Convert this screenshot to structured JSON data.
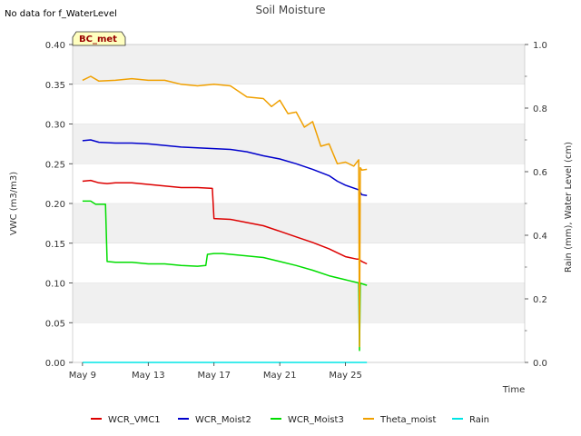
{
  "chart_data": {
    "type": "line",
    "title": "Soil Moisture",
    "no_data_message": "No data for f_WaterLevel",
    "badge": "BC_met",
    "xlabel": "Time",
    "ylabel_left": "VWC (m3/m3)",
    "ylabel_right": "Rain (mm), Water Level (cm)",
    "x_unit": "days since May 9",
    "xlim": [
      -0.6,
      26.9
    ],
    "ylim_left": [
      0,
      0.4
    ],
    "ylim_right": [
      0,
      1.0
    ],
    "x_ticks": [
      {
        "value": 0,
        "label": "May 9"
      },
      {
        "value": 4,
        "label": "May 13"
      },
      {
        "value": 8,
        "label": "May 17"
      },
      {
        "value": 12,
        "label": "May 21"
      },
      {
        "value": 16,
        "label": "May 25"
      }
    ],
    "y_ticks_left": [
      {
        "value": 0.0,
        "label": "0.00"
      },
      {
        "value": 0.05,
        "label": "0.05"
      },
      {
        "value": 0.1,
        "label": "0.10"
      },
      {
        "value": 0.15,
        "label": "0.15"
      },
      {
        "value": 0.2,
        "label": "0.20"
      },
      {
        "value": 0.25,
        "label": "0.25"
      },
      {
        "value": 0.3,
        "label": "0.30"
      },
      {
        "value": 0.35,
        "label": "0.35"
      },
      {
        "value": 0.4,
        "label": "0.40"
      }
    ],
    "y_ticks_right": [
      {
        "value": 0.0,
        "label": "0.0"
      },
      {
        "value": 0.2,
        "label": "0.2"
      },
      {
        "value": 0.4,
        "label": "0.4"
      },
      {
        "value": 0.6,
        "label": "0.6"
      },
      {
        "value": 0.8,
        "label": "0.8"
      },
      {
        "value": 1.0,
        "label": "1.0"
      }
    ],
    "grid": true,
    "legend_position": "bottom",
    "series": [
      {
        "name": "WCR_VMC1",
        "color": "#dd0000",
        "axis": "left",
        "x": [
          0,
          0.5,
          1.0,
          1.5,
          2.0,
          3.0,
          4.0,
          5.0,
          6.0,
          7.0,
          7.9,
          8.0,
          9.0,
          10.0,
          11.0,
          12.0,
          13.0,
          14.0,
          15.0,
          15.5,
          16.0,
          16.7,
          16.8,
          17.0,
          17.3
        ],
        "y": [
          0.228,
          0.229,
          0.226,
          0.225,
          0.226,
          0.226,
          0.224,
          0.222,
          0.22,
          0.22,
          0.219,
          0.181,
          0.18,
          0.176,
          0.172,
          0.165,
          0.158,
          0.151,
          0.143,
          0.138,
          0.133,
          0.13,
          0.13,
          0.127,
          0.124
        ]
      },
      {
        "name": "WCR_Moist2",
        "color": "#0000cc",
        "axis": "left",
        "x": [
          0,
          0.5,
          1.0,
          2.0,
          3.0,
          4.0,
          5.0,
          6.0,
          7.0,
          8.0,
          9.0,
          10.0,
          11.0,
          12.0,
          13.0,
          14.0,
          15.0,
          15.5,
          16.0,
          16.7,
          16.8,
          17.0,
          17.3
        ],
        "y": [
          0.279,
          0.28,
          0.277,
          0.276,
          0.276,
          0.275,
          0.273,
          0.271,
          0.27,
          0.269,
          0.268,
          0.265,
          0.26,
          0.256,
          0.25,
          0.243,
          0.235,
          0.228,
          0.223,
          0.218,
          0.217,
          0.211,
          0.21
        ]
      },
      {
        "name": "WCR_Moist3",
        "color": "#00dd00",
        "axis": "left",
        "x": [
          0,
          0.5,
          0.8,
          1.2,
          1.4,
          1.5,
          2.0,
          3.0,
          4.0,
          5.0,
          6.0,
          7.0,
          7.5,
          7.6,
          8.0,
          8.5,
          9.0,
          10.0,
          11.0,
          12.0,
          13.0,
          14.0,
          15.0,
          16.0,
          16.8,
          16.85,
          16.9,
          17.0,
          17.3
        ],
        "y": [
          0.203,
          0.203,
          0.199,
          0.199,
          0.199,
          0.127,
          0.126,
          0.126,
          0.124,
          0.124,
          0.122,
          0.121,
          0.122,
          0.136,
          0.137,
          0.137,
          0.136,
          0.134,
          0.132,
          0.127,
          0.122,
          0.116,
          0.109,
          0.104,
          0.1,
          0.015,
          0.1,
          0.099,
          0.097
        ]
      },
      {
        "name": "Theta_moist",
        "color": "#f0a000",
        "axis": "left",
        "x": [
          0,
          0.5,
          1.0,
          2.0,
          3.0,
          4.0,
          5.0,
          6.0,
          7.0,
          8.0,
          9.0,
          10.0,
          11.0,
          11.5,
          12.0,
          12.5,
          13.0,
          13.5,
          14.0,
          14.5,
          15.0,
          15.5,
          16.0,
          16.5,
          16.8,
          16.85,
          16.9,
          17.0,
          17.3
        ],
        "y": [
          0.355,
          0.36,
          0.354,
          0.355,
          0.357,
          0.355,
          0.355,
          0.35,
          0.348,
          0.35,
          0.348,
          0.334,
          0.332,
          0.322,
          0.33,
          0.313,
          0.315,
          0.296,
          0.303,
          0.272,
          0.275,
          0.25,
          0.252,
          0.247,
          0.255,
          0.02,
          0.245,
          0.242,
          0.243
        ]
      },
      {
        "name": "Rain",
        "color": "#00e5e5",
        "axis": "right",
        "x": [
          0,
          17.3
        ],
        "y": [
          0.0,
          0.0
        ]
      }
    ]
  }
}
